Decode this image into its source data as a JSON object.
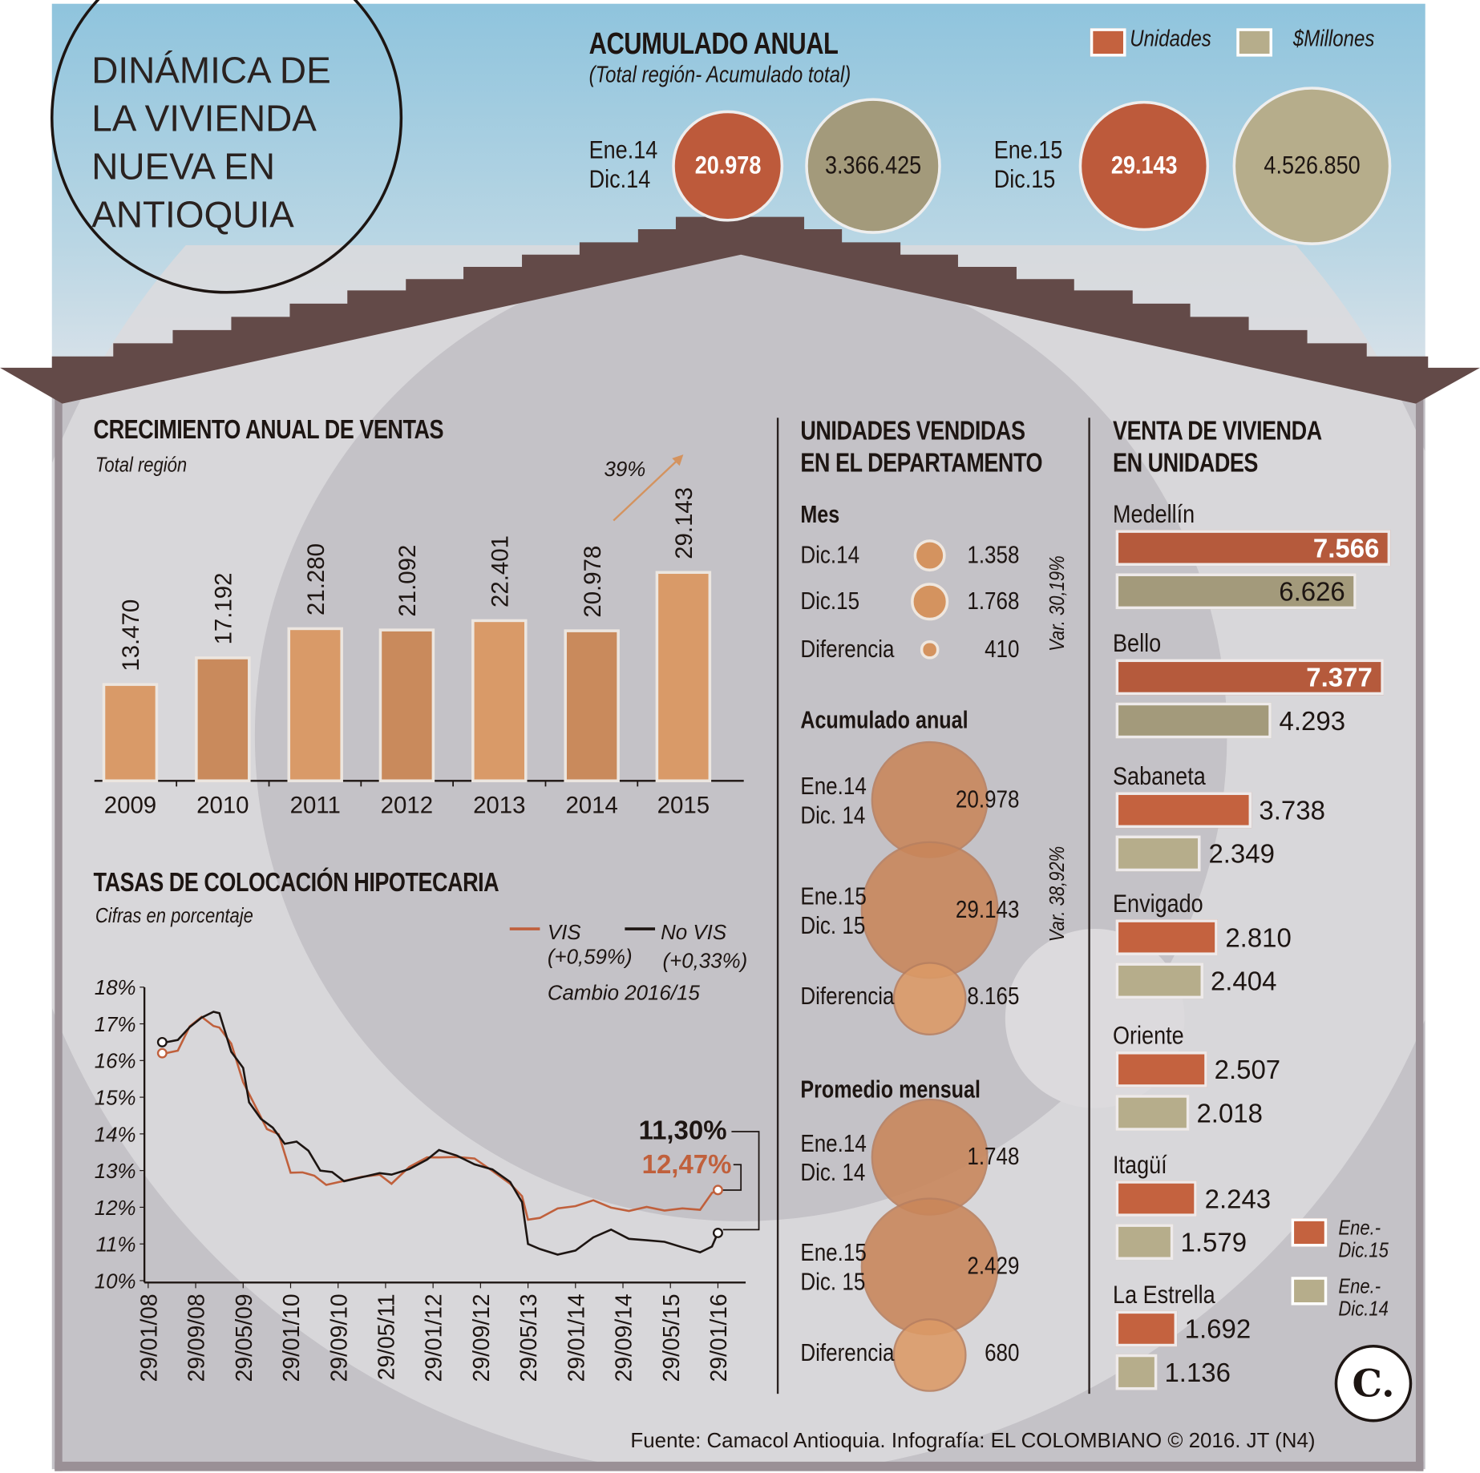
{
  "title": "DINÁMICA DE LA VIVIENDA NUEVA EN ANTIOQUIA",
  "title_lines": [
    "DINÁMICA DE",
    "LA VIVIENDA",
    "NUEVA EN",
    "ANTIOQUIA"
  ],
  "colors": {
    "unidades": "#c4623f",
    "millones": "#a59c7c",
    "bar": "#d4935f",
    "nuevis": "#1d1512",
    "vis": "#c0603c",
    "house": "#c4c2c7",
    "roof": "#634a48"
  },
  "acumulado": {
    "title": "ACUMULADO ANUAL",
    "subtitle": "(Total región- Acumulado total)",
    "legend": [
      "Unidades",
      "$Millones"
    ],
    "periods": [
      {
        "label1": "Ene.14",
        "label2": "Dic.14",
        "unidades": "20.978",
        "millones": "3.366.425",
        "u": 20978,
        "m": 3366425
      },
      {
        "label1": "Ene.15",
        "label2": "Dic.15",
        "unidades": "29.143",
        "millones": "4.526.850",
        "u": 29143,
        "m": 4526850
      }
    ]
  },
  "chart_data": [
    {
      "type": "bar",
      "title": "CRECIMIENTO ANUAL DE VENTAS",
      "subtitle": "Total región",
      "categories": [
        "2009",
        "2010",
        "2011",
        "2012",
        "2013",
        "2014",
        "2015"
      ],
      "values": [
        13470,
        17192,
        21280,
        21092,
        22401,
        20978,
        29143
      ],
      "labels": [
        "13.470",
        "17.192",
        "21.280",
        "21.092",
        "22.401",
        "20.978",
        "29.143"
      ],
      "annotation": "39%",
      "ylim": [
        0,
        30000
      ]
    },
    {
      "type": "line",
      "title": "TASAS DE COLOCACIÓN HIPOTECARIA",
      "subtitle": "Cifras en porcentaje",
      "ylim": [
        10,
        18
      ],
      "yticks": [
        "10%",
        "11%",
        "12%",
        "13%",
        "14%",
        "15%",
        "16%",
        "17%",
        "18%"
      ],
      "xticks": [
        "29/01/08",
        "29/09/08",
        "29/05/09",
        "29/01/10",
        "29/09/10",
        "29/05/11",
        "29/01/12",
        "29/09/12",
        "29/05/13",
        "29/01/14",
        "29/09/14",
        "29/05/15",
        "29/01/16"
      ],
      "legend_note": "Cambio 2016/15",
      "series": [
        {
          "name": "VIS",
          "change": "(+0,59%)",
          "end_label": "12,47%",
          "points": [
            [
              "2008-04",
              16.2
            ],
            [
              "2008-06",
              16.3
            ],
            [
              "2008-08",
              16.9
            ],
            [
              "2008-10",
              17.1
            ],
            [
              "2008-12",
              17.0
            ],
            [
              "2009-01",
              16.9
            ],
            [
              "2009-03",
              16.4
            ],
            [
              "2009-05",
              15.5
            ],
            [
              "2009-07",
              14.8
            ],
            [
              "2009-09",
              14.1
            ],
            [
              "2009-11",
              13.9
            ],
            [
              "2010-01",
              13.0
            ],
            [
              "2010-03",
              12.95
            ],
            [
              "2010-05",
              12.8
            ],
            [
              "2010-07",
              12.7
            ],
            [
              "2010-10",
              12.75
            ],
            [
              "2011-01",
              12.8
            ],
            [
              "2011-04",
              12.8
            ],
            [
              "2011-06",
              12.7
            ],
            [
              "2011-09",
              13.1
            ],
            [
              "2011-12",
              13.3
            ],
            [
              "2012-02",
              13.45
            ],
            [
              "2012-05",
              13.4
            ],
            [
              "2012-08",
              13.3
            ],
            [
              "2012-11",
              12.9
            ],
            [
              "2013-02",
              12.7
            ],
            [
              "2013-04",
              12.3
            ],
            [
              "2013-05",
              11.6
            ],
            [
              "2013-07",
              11.8
            ],
            [
              "2013-10",
              12.0
            ],
            [
              "2014-01",
              12.0
            ],
            [
              "2014-04",
              12.1
            ],
            [
              "2014-07",
              12.05
            ],
            [
              "2014-10",
              11.9
            ],
            [
              "2015-01",
              11.95
            ],
            [
              "2015-04",
              12.0
            ],
            [
              "2015-07",
              12.0
            ],
            [
              "2015-10",
              11.9
            ],
            [
              "2015-12",
              12.3
            ],
            [
              "2016-01",
              12.47
            ]
          ]
        },
        {
          "name": "No VIS",
          "change": "(+0,33%)",
          "end_label": "11,30%",
          "points": [
            [
              "2008-04",
              16.5
            ],
            [
              "2008-06",
              16.5
            ],
            [
              "2008-08",
              17.0
            ],
            [
              "2008-10",
              17.2
            ],
            [
              "2008-12",
              17.3
            ],
            [
              "2009-01",
              17.2
            ],
            [
              "2009-03",
              16.3
            ],
            [
              "2009-05",
              15.8
            ],
            [
              "2009-06",
              14.8
            ],
            [
              "2009-08",
              14.5
            ],
            [
              "2009-10",
              14.2
            ],
            [
              "2009-12",
              13.7
            ],
            [
              "2010-02",
              13.7
            ],
            [
              "2010-04",
              13.6
            ],
            [
              "2010-06",
              13.0
            ],
            [
              "2010-08",
              12.9
            ],
            [
              "2010-10",
              12.8
            ],
            [
              "2011-01",
              12.85
            ],
            [
              "2011-04",
              12.9
            ],
            [
              "2011-06",
              12.8
            ],
            [
              "2011-09",
              13.1
            ],
            [
              "2011-12",
              13.3
            ],
            [
              "2012-02",
              13.5
            ],
            [
              "2012-05",
              13.5
            ],
            [
              "2012-08",
              13.2
            ],
            [
              "2012-11",
              13.0
            ],
            [
              "2013-02",
              12.6
            ],
            [
              "2013-04",
              12.2
            ],
            [
              "2013-05",
              11.0
            ],
            [
              "2013-07",
              10.8
            ],
            [
              "2013-10",
              10.8
            ],
            [
              "2014-01",
              10.85
            ],
            [
              "2014-04",
              11.15
            ],
            [
              "2014-07",
              11.3
            ],
            [
              "2014-10",
              11.2
            ],
            [
              "2015-01",
              11.1
            ],
            [
              "2015-04",
              11.0
            ],
            [
              "2015-07",
              11.0
            ],
            [
              "2015-10",
              10.8
            ],
            [
              "2015-12",
              10.9
            ],
            [
              "2016-01",
              11.3
            ]
          ]
        }
      ]
    }
  ],
  "unidades_dept": {
    "title_lines": [
      "UNIDADES VENDIDAS",
      "EN EL DEPARTAMENTO"
    ],
    "groups": [
      {
        "title": "Mes",
        "var": "Var. 30,19%",
        "rows": [
          {
            "label1": "Dic.14",
            "label2": "",
            "value": "1.358",
            "v": 1358
          },
          {
            "label1": "Dic.15",
            "label2": "",
            "value": "1.768",
            "v": 1768
          },
          {
            "label1": "Diferencia",
            "label2": "",
            "value": "410",
            "v": 410
          }
        ]
      },
      {
        "title": "Acumulado anual",
        "var": "Var. 38,92%",
        "rows": [
          {
            "label1": "Ene.14",
            "label2": "Dic. 14",
            "value": "20.978",
            "v": 20978
          },
          {
            "label1": "Ene.15",
            "label2": "Dic. 15",
            "value": "29.143",
            "v": 29143
          },
          {
            "label1": "Diferencia",
            "label2": "",
            "value": "8.165",
            "v": 8165
          }
        ]
      },
      {
        "title": "Promedio mensual",
        "var": "",
        "rows": [
          {
            "label1": "Ene.14",
            "label2": "Dic. 14",
            "value": "1.748",
            "v": 1748
          },
          {
            "label1": "Ene.15",
            "label2": "Dic. 15",
            "value": "2.429",
            "v": 2429
          },
          {
            "label1": "Diferencia",
            "label2": "",
            "value": "680",
            "v": 680
          }
        ]
      }
    ]
  },
  "venta_unidades": {
    "title_lines": [
      "VENTA DE VIVIENDA",
      "EN UNIDADES"
    ],
    "cities": [
      {
        "name": "Medellín",
        "v15": 7566,
        "v14": 6626,
        "l15": "7.566",
        "l14": "6.626"
      },
      {
        "name": "Bello",
        "v15": 7377,
        "v14": 4293,
        "l15": "7.377",
        "l14": "4.293"
      },
      {
        "name": "Sabaneta",
        "v15": 3738,
        "v14": 2349,
        "l15": "3.738",
        "l14": "2.349"
      },
      {
        "name": "Envigado",
        "v15": 2810,
        "v14": 2404,
        "l15": "2.810",
        "l14": "2.404"
      },
      {
        "name": "Oriente",
        "v15": 2507,
        "v14": 2018,
        "l15": "2.507",
        "l14": "2.018"
      },
      {
        "name": "Itagüí",
        "v15": 2243,
        "v14": 1579,
        "l15": "2.243",
        "l14": "1.579"
      },
      {
        "name": "La Estrella",
        "v15": 1692,
        "v14": 1136,
        "l15": "1.692",
        "l14": "1.136"
      }
    ],
    "legend": [
      {
        "l1": "Ene.-",
        "l2": "Dic.15"
      },
      {
        "l1": "Ene.-",
        "l2": "Dic.14"
      }
    ]
  },
  "source": "Fuente: Camacol Antioquia. Infografía: EL COLOMBIANO © 2016. JT (N4)",
  "logo": "C."
}
